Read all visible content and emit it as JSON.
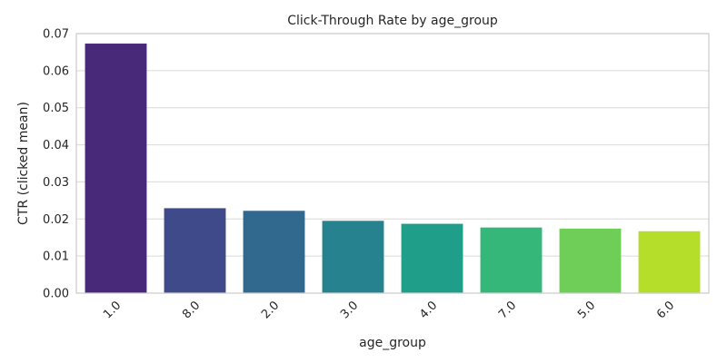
{
  "chart_data": {
    "type": "bar",
    "title": "Click-Through Rate by age_group",
    "xlabel": "age_group",
    "ylabel": "CTR (clicked mean)",
    "categories": [
      "1.0",
      "8.0",
      "2.0",
      "3.0",
      "4.0",
      "7.0",
      "5.0",
      "6.0"
    ],
    "values": [
      0.0673,
      0.0229,
      0.0222,
      0.0195,
      0.0187,
      0.0177,
      0.0174,
      0.0167
    ],
    "colors": [
      "#482878",
      "#3e4a89",
      "#31688e",
      "#26828e",
      "#1f9e89",
      "#35b779",
      "#6ece58",
      "#b5de2b"
    ],
    "ylim": [
      0,
      0.07
    ],
    "yticks": [
      "0.00",
      "0.01",
      "0.02",
      "0.03",
      "0.04",
      "0.05",
      "0.06",
      "0.07"
    ],
    "grid": "horizontal",
    "xtick_rotation": "45 degrees",
    "legend": "none"
  }
}
